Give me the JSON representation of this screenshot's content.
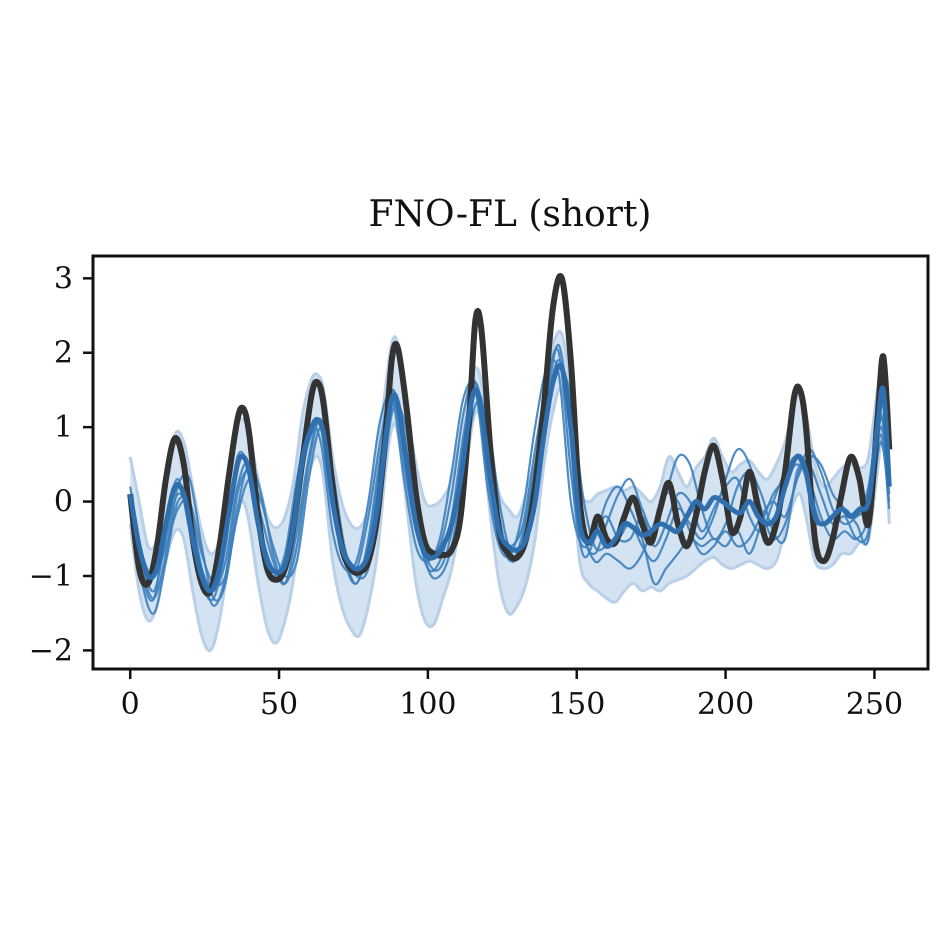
{
  "chart_data": {
    "type": "line",
    "title": "FNO-FL (short)",
    "xlabel": "",
    "ylabel": "",
    "xlim": [
      -12.5,
      268
    ],
    "ylim": [
      -2.25,
      3.3
    ],
    "xticks": [
      0,
      50,
      100,
      150,
      200,
      250
    ],
    "yticks": [
      -2,
      -1,
      0,
      1,
      2,
      3
    ],
    "ytick_labels": [
      "−2",
      "−1",
      "0",
      "1",
      "2",
      "3"
    ],
    "grid": false,
    "legend": "none",
    "colors": {
      "ground_truth": "#333333",
      "mean": "#2f6fad",
      "samples": "#3d7fbb",
      "band_fill": "#c6d9ec",
      "band_edge": "#b9d0e8"
    },
    "ground_truth": {
      "x": [
        0,
        3,
        6,
        9,
        12,
        15,
        18,
        21,
        24,
        27,
        30,
        33,
        36,
        38,
        40,
        43,
        46,
        49,
        52,
        55,
        58,
        61,
        63,
        65,
        68,
        71,
        74,
        77,
        80,
        83,
        86,
        88,
        90,
        93,
        96,
        99,
        102,
        105,
        108,
        111,
        114,
        116,
        118,
        121,
        124,
        127,
        130,
        133,
        136,
        139,
        142,
        145,
        148,
        151,
        154,
        157,
        160,
        163,
        166,
        169,
        172,
        175,
        178,
        181,
        184,
        187,
        190,
        193,
        196,
        199,
        202,
        205,
        208,
        211,
        214,
        217,
        220,
        223,
        225,
        227,
        230,
        233,
        236,
        239,
        242,
        245,
        248,
        251,
        253,
        255
      ],
      "y": [
        0.1,
        -0.9,
        -1.1,
        -0.6,
        0.3,
        0.85,
        0.5,
        -0.5,
        -1.1,
        -1.2,
        -0.6,
        0.3,
        1.1,
        1.25,
        0.9,
        -0.2,
        -0.9,
        -1.05,
        -0.9,
        -0.3,
        0.6,
        1.45,
        1.6,
        1.3,
        0.2,
        -0.6,
        -0.9,
        -0.95,
        -0.8,
        -0.2,
        1.0,
        1.95,
        2.05,
        1.2,
        0.1,
        -0.55,
        -0.7,
        -0.72,
        -0.65,
        -0.2,
        1.2,
        2.45,
        2.3,
        0.7,
        -0.4,
        -0.7,
        -0.75,
        -0.5,
        0.2,
        1.3,
        2.6,
        3.0,
        1.9,
        0.0,
        -0.55,
        -0.2,
        -0.5,
        -0.55,
        -0.2,
        0.05,
        -0.3,
        -0.55,
        -0.1,
        0.25,
        -0.3,
        -0.6,
        -0.2,
        0.4,
        0.75,
        0.3,
        -0.4,
        -0.2,
        0.4,
        -0.1,
        -0.55,
        -0.3,
        0.4,
        1.4,
        1.5,
        1.0,
        -0.5,
        -0.8,
        -0.5,
        0.1,
        0.6,
        0.3,
        -0.3,
        1.1,
        1.95,
        0.7
      ]
    },
    "mean": {
      "x": [
        0,
        3,
        6,
        9,
        12,
        15,
        18,
        21,
        24,
        27,
        30,
        33,
        36,
        38,
        40,
        43,
        46,
        49,
        52,
        55,
        58,
        61,
        63,
        65,
        68,
        71,
        74,
        77,
        80,
        83,
        86,
        88,
        90,
        93,
        96,
        99,
        102,
        105,
        108,
        111,
        114,
        116,
        118,
        121,
        124,
        127,
        130,
        133,
        136,
        139,
        142,
        145,
        148,
        151,
        154,
        157,
        160,
        163,
        166,
        169,
        172,
        175,
        178,
        181,
        184,
        187,
        190,
        193,
        196,
        199,
        202,
        205,
        208,
        211,
        214,
        217,
        220,
        223,
        225,
        227,
        230,
        233,
        236,
        239,
        242,
        245,
        248,
        251,
        253,
        255
      ],
      "y": [
        0.1,
        -0.6,
        -1.0,
        -0.9,
        -0.3,
        0.2,
        0.1,
        -0.5,
        -1.0,
        -1.2,
        -0.9,
        -0.2,
        0.5,
        0.6,
        0.4,
        -0.3,
        -0.8,
        -0.95,
        -0.85,
        -0.3,
        0.6,
        1.0,
        1.1,
        0.9,
        0.0,
        -0.6,
        -0.85,
        -0.9,
        -0.7,
        -0.1,
        0.9,
        1.4,
        1.3,
        0.5,
        -0.3,
        -0.7,
        -0.75,
        -0.6,
        -0.3,
        0.3,
        1.2,
        1.5,
        1.2,
        0.3,
        -0.4,
        -0.6,
        -0.65,
        -0.5,
        0.0,
        0.9,
        1.6,
        1.8,
        1.0,
        -0.3,
        -0.55,
        -0.4,
        -0.6,
        -0.5,
        -0.3,
        -0.35,
        -0.45,
        -0.4,
        -0.3,
        -0.35,
        -0.4,
        -0.2,
        0.0,
        -0.1,
        0.05,
        0.0,
        -0.1,
        -0.15,
        0.0,
        -0.2,
        -0.3,
        -0.2,
        0.2,
        0.55,
        0.6,
        0.4,
        -0.2,
        -0.3,
        -0.2,
        -0.1,
        -0.2,
        -0.1,
        0.0,
        1.0,
        1.5,
        0.2
      ]
    },
    "band": {
      "x": [
        0,
        3,
        6,
        9,
        12,
        15,
        18,
        21,
        24,
        27,
        30,
        33,
        36,
        38,
        40,
        43,
        46,
        49,
        52,
        55,
        58,
        61,
        63,
        65,
        68,
        71,
        74,
        77,
        80,
        83,
        86,
        88,
        90,
        93,
        96,
        99,
        102,
        105,
        108,
        111,
        114,
        116,
        118,
        121,
        124,
        127,
        130,
        133,
        136,
        139,
        142,
        145,
        148,
        151,
        154,
        157,
        160,
        163,
        166,
        169,
        172,
        175,
        178,
        181,
        184,
        187,
        190,
        193,
        196,
        199,
        202,
        205,
        208,
        211,
        214,
        217,
        220,
        223,
        225,
        227,
        230,
        233,
        236,
        239,
        242,
        245,
        248,
        251,
        253,
        255
      ],
      "lower": [
        -0.3,
        -1.2,
        -1.6,
        -1.4,
        -0.8,
        -0.4,
        -0.5,
        -1.2,
        -1.8,
        -2.0,
        -1.6,
        -0.8,
        -0.1,
        0.0,
        -0.3,
        -1.1,
        -1.7,
        -1.9,
        -1.6,
        -1.0,
        0.0,
        0.5,
        0.6,
        0.3,
        -0.8,
        -1.4,
        -1.7,
        -1.8,
        -1.4,
        -0.7,
        0.5,
        1.0,
        0.9,
        -0.1,
        -1.1,
        -1.6,
        -1.65,
        -1.3,
        -0.9,
        -0.2,
        0.8,
        1.2,
        1.0,
        -0.2,
        -1.1,
        -1.5,
        -1.4,
        -1.1,
        -0.5,
        0.5,
        1.2,
        1.5,
        0.6,
        -0.8,
        -1.1,
        -1.2,
        -1.3,
        -1.35,
        -1.2,
        -1.1,
        -1.2,
        -1.15,
        -1.2,
        -1.1,
        -1.05,
        -1.0,
        -0.9,
        -0.8,
        -0.75,
        -0.85,
        -0.9,
        -0.85,
        -0.8,
        -0.85,
        -0.9,
        -0.8,
        -0.4,
        0.0,
        0.1,
        -0.2,
        -0.8,
        -0.9,
        -0.85,
        -0.7,
        -0.7,
        -0.55,
        -0.5,
        0.4,
        1.0,
        -0.3
      ],
      "upper": [
        0.6,
        0.0,
        -0.6,
        -0.5,
        0.2,
        0.9,
        0.8,
        0.2,
        -0.4,
        -0.7,
        -0.5,
        0.3,
        1.0,
        1.1,
        0.9,
        0.3,
        -0.2,
        -0.35,
        -0.2,
        0.3,
        1.2,
        1.65,
        1.7,
        1.5,
        0.6,
        0.0,
        -0.3,
        -0.35,
        -0.1,
        0.6,
        1.6,
        2.15,
        2.1,
        1.2,
        0.5,
        0.0,
        -0.05,
        0.05,
        0.3,
        0.9,
        1.6,
        1.8,
        1.6,
        0.7,
        0.1,
        -0.1,
        -0.2,
        0.1,
        0.6,
        1.4,
        2.1,
        2.25,
        1.5,
        0.2,
        0.0,
        0.1,
        0.15,
        0.2,
        0.15,
        0.2,
        0.1,
        0.0,
        0.2,
        0.6,
        0.4,
        0.2,
        0.45,
        0.6,
        0.85,
        0.6,
        0.4,
        0.5,
        0.55,
        0.4,
        0.3,
        0.5,
        0.8,
        1.3,
        1.45,
        1.2,
        0.5,
        0.2,
        0.3,
        0.45,
        0.5,
        0.45,
        0.6,
        1.5,
        1.9,
        0.8
      ]
    },
    "samples": [
      {
        "x": [
          0,
          4,
          8,
          12,
          16,
          20,
          24,
          28,
          32,
          36,
          40,
          44,
          48,
          52,
          56,
          60,
          64,
          68,
          72,
          76,
          80,
          84,
          88,
          92,
          96,
          100,
          104,
          108,
          112,
          116,
          120,
          124,
          128,
          132,
          136,
          140,
          144,
          148,
          152,
          156,
          160,
          164,
          168,
          172,
          176,
          180,
          184,
          188,
          192,
          196,
          200,
          204,
          208,
          212,
          216,
          220,
          224,
          228,
          232,
          236,
          240,
          244,
          248,
          252,
          255
        ],
        "y": [
          0.0,
          -1.0,
          -1.3,
          -0.3,
          0.3,
          -0.4,
          -1.1,
          -1.3,
          -0.6,
          0.6,
          0.4,
          -0.6,
          -1.0,
          -0.7,
          0.3,
          1.0,
          0.8,
          -0.4,
          -0.9,
          -0.8,
          0.0,
          1.1,
          1.4,
          0.3,
          -0.6,
          -0.8,
          -0.5,
          0.4,
          1.4,
          1.5,
          0.2,
          -0.6,
          -0.7,
          -0.1,
          1.0,
          1.8,
          1.7,
          0.0,
          -0.6,
          -0.4,
          -0.2,
          -0.5,
          -0.5,
          -0.2,
          -0.6,
          -0.3,
          0.1,
          0.0,
          -0.4,
          -0.1,
          0.2,
          0.3,
          -0.2,
          -0.4,
          0.0,
          0.4,
          0.6,
          0.2,
          -0.3,
          -0.2,
          -0.1,
          -0.2,
          0.2,
          1.2,
          0.1
        ]
      },
      {
        "x": [
          0,
          4,
          8,
          12,
          16,
          20,
          24,
          28,
          32,
          36,
          40,
          44,
          48,
          52,
          56,
          60,
          64,
          68,
          72,
          76,
          80,
          84,
          88,
          92,
          96,
          100,
          104,
          108,
          112,
          116,
          120,
          124,
          128,
          132,
          136,
          140,
          144,
          148,
          152,
          156,
          160,
          164,
          168,
          172,
          176,
          180,
          184,
          188,
          192,
          196,
          200,
          204,
          208,
          212,
          216,
          220,
          224,
          228,
          232,
          236,
          240,
          244,
          248,
          252,
          255
        ],
        "y": [
          0.1,
          -0.8,
          -1.2,
          -0.5,
          0.1,
          -0.2,
          -0.9,
          -1.2,
          -0.8,
          0.2,
          0.5,
          -0.4,
          -0.9,
          -0.9,
          0.0,
          0.8,
          1.0,
          -0.1,
          -0.8,
          -0.9,
          -0.2,
          0.8,
          1.5,
          0.5,
          -0.4,
          -0.7,
          -0.6,
          0.1,
          1.2,
          1.6,
          0.4,
          -0.5,
          -0.6,
          -0.3,
          0.7,
          1.6,
          2.0,
          0.4,
          -0.7,
          -0.5,
          0.0,
          0.2,
          -0.1,
          -0.5,
          -1.1,
          -0.9,
          -0.7,
          -0.5,
          -0.6,
          -0.5,
          -0.6,
          -0.4,
          -0.7,
          -0.3,
          0.1,
          0.3,
          0.5,
          0.3,
          -0.2,
          -0.5,
          -0.4,
          -0.5,
          -0.2,
          0.9,
          -0.1
        ]
      },
      {
        "x": [
          0,
          4,
          8,
          12,
          16,
          20,
          24,
          28,
          32,
          36,
          40,
          44,
          48,
          52,
          56,
          60,
          64,
          68,
          72,
          76,
          80,
          84,
          88,
          92,
          96,
          100,
          104,
          108,
          112,
          116,
          120,
          124,
          128,
          132,
          136,
          140,
          144,
          148,
          152,
          156,
          160,
          164,
          168,
          172,
          176,
          180,
          184,
          188,
          192,
          196,
          200,
          204,
          208,
          212,
          216,
          220,
          224,
          228,
          232,
          236,
          240,
          244,
          248,
          252,
          255
        ],
        "y": [
          -0.1,
          -1.1,
          -1.5,
          -0.8,
          0.0,
          -0.1,
          -0.9,
          -1.4,
          -1.0,
          0.1,
          0.4,
          -0.2,
          -0.8,
          -1.1,
          -0.4,
          0.6,
          1.1,
          0.1,
          -0.8,
          -1.1,
          -0.6,
          0.5,
          1.5,
          0.8,
          -0.3,
          -0.9,
          -0.8,
          -0.2,
          0.9,
          1.6,
          0.8,
          -0.4,
          -0.8,
          -0.4,
          0.5,
          1.4,
          2.1,
          1.0,
          -0.4,
          -0.7,
          -0.3,
          0.1,
          0.3,
          -0.1,
          -0.4,
          0.1,
          0.6,
          0.5,
          -0.1,
          -0.5,
          -0.3,
          0.2,
          0.4,
          0.1,
          -0.4,
          -0.5,
          0.4,
          0.5,
          0.1,
          -0.3,
          -0.2,
          -0.5,
          -0.4,
          0.8,
          0.0
        ]
      },
      {
        "x": [
          0,
          4,
          8,
          12,
          16,
          20,
          24,
          28,
          32,
          36,
          40,
          44,
          48,
          52,
          56,
          60,
          64,
          68,
          72,
          76,
          80,
          84,
          88,
          92,
          96,
          100,
          104,
          108,
          112,
          116,
          120,
          124,
          128,
          132,
          136,
          140,
          144,
          148,
          152,
          156,
          160,
          164,
          168,
          172,
          176,
          180,
          184,
          188,
          192,
          196,
          200,
          204,
          208,
          212,
          216,
          220,
          224,
          228,
          232,
          236,
          240,
          244,
          248,
          252,
          255
        ],
        "y": [
          0.2,
          -0.7,
          -1.0,
          -0.6,
          -0.1,
          0.0,
          -0.7,
          -1.1,
          -1.0,
          -0.2,
          0.3,
          0.0,
          -0.6,
          -1.0,
          -0.8,
          0.3,
          1.0,
          0.4,
          -0.6,
          -1.0,
          -0.9,
          0.0,
          1.2,
          1.1,
          0.0,
          -0.9,
          -1.0,
          -0.6,
          0.4,
          1.3,
          1.1,
          0.0,
          -0.7,
          -0.6,
          0.2,
          1.2,
          1.8,
          1.4,
          0.1,
          -0.6,
          -0.6,
          -0.5,
          -0.3,
          -0.6,
          -0.8,
          -0.5,
          -0.1,
          -0.3,
          -0.5,
          -0.2,
          0.3,
          0.7,
          0.5,
          -0.1,
          -0.5,
          -0.3,
          0.3,
          0.7,
          0.4,
          -0.1,
          -0.3,
          -0.2,
          0.0,
          1.0,
          0.3
        ]
      },
      {
        "x": [
          0,
          4,
          8,
          12,
          16,
          20,
          24,
          28,
          32,
          36,
          40,
          44,
          48,
          52,
          56,
          60,
          64,
          68,
          72,
          76,
          80,
          84,
          88,
          92,
          96,
          100,
          104,
          108,
          112,
          116,
          120,
          124,
          128,
          132,
          136,
          140,
          144,
          148,
          152,
          156,
          160,
          164,
          168,
          172,
          176,
          180,
          184,
          188,
          192,
          196,
          200,
          204,
          208,
          212,
          216,
          220,
          224,
          228,
          232,
          236,
          240,
          244,
          248,
          252,
          255
        ],
        "y": [
          0.0,
          -0.9,
          -1.3,
          -0.7,
          0.2,
          0.3,
          -0.6,
          -1.3,
          -1.1,
          -0.1,
          0.5,
          0.1,
          -0.7,
          -1.1,
          -0.6,
          0.5,
          1.1,
          0.2,
          -0.7,
          -1.1,
          -0.5,
          0.6,
          1.4,
          0.9,
          -0.2,
          -0.8,
          -0.9,
          -0.4,
          0.7,
          1.5,
          1.0,
          -0.2,
          -0.8,
          -0.5,
          0.4,
          1.3,
          1.9,
          1.2,
          -0.3,
          -0.8,
          -0.7,
          -0.8,
          -0.9,
          -0.7,
          -0.3,
          0.1,
          0.0,
          -0.4,
          -0.7,
          -0.6,
          -0.4,
          -0.6,
          -0.5,
          -0.2,
          0.0,
          -0.2,
          0.3,
          0.6,
          0.5,
          0.1,
          -0.1,
          -0.3,
          -0.5,
          1.1,
          0.4
        ]
      }
    ]
  }
}
